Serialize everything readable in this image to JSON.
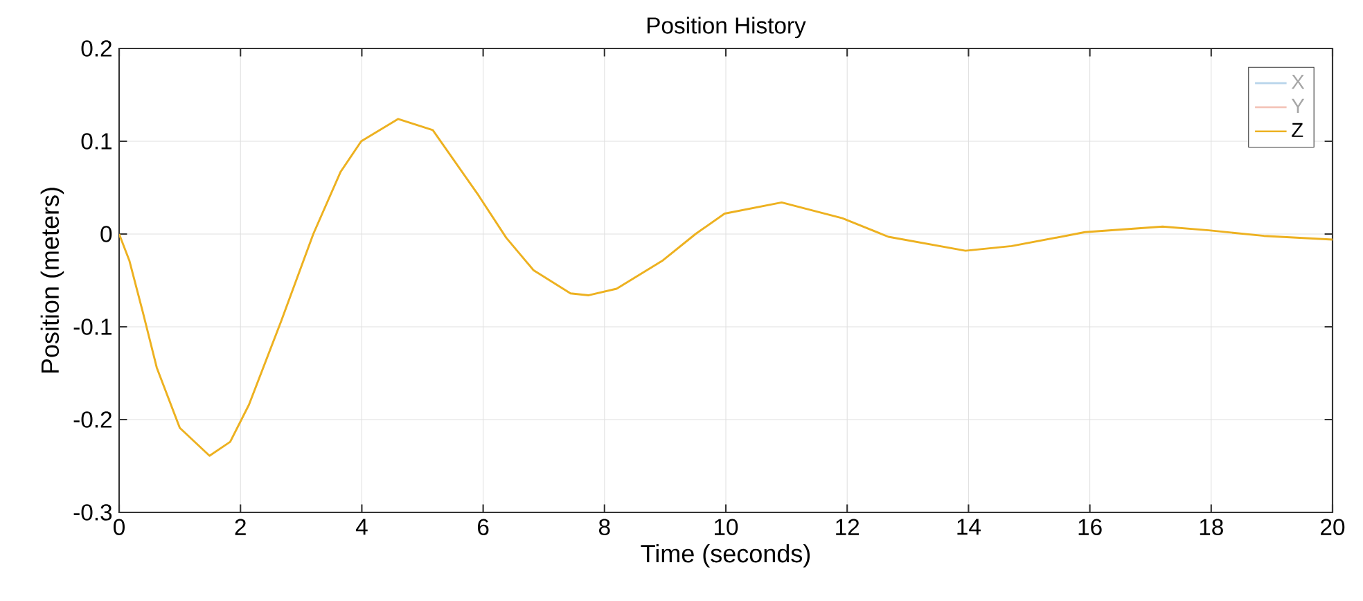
{
  "chart_data": {
    "type": "line",
    "title": "Position History",
    "xlabel": "Time (seconds)",
    "ylabel": "Position (meters)",
    "x": [
      0,
      0.17,
      0.39,
      0.62,
      1.0,
      1.49,
      1.83,
      2.14,
      2.67,
      3.2,
      3.65,
      3.99,
      4.6,
      5.17,
      5.92,
      6.38,
      6.83,
      7.44,
      7.74,
      8.2,
      8.95,
      9.5,
      9.98,
      10.92,
      11.92,
      12.68,
      13.95,
      14.71,
      15.92,
      17.2,
      17.96,
      18.87,
      20
    ],
    "series": [
      {
        "name": "X",
        "color": "#b7d4ea",
        "values": [
          null,
          null,
          null,
          null,
          null,
          null,
          null,
          null,
          null,
          null,
          null,
          null,
          null,
          null,
          null,
          null,
          null,
          null,
          null,
          null,
          null,
          null,
          null,
          null,
          null,
          null,
          null,
          null,
          null,
          null,
          null,
          null,
          null
        ]
      },
      {
        "name": "Y",
        "color": "#f4c4b8",
        "values": [
          null,
          null,
          null,
          null,
          null,
          null,
          null,
          null,
          null,
          null,
          null,
          null,
          null,
          null,
          null,
          null,
          null,
          null,
          null,
          null,
          null,
          null,
          null,
          null,
          null,
          null,
          null,
          null,
          null,
          null,
          null,
          null,
          null
        ]
      },
      {
        "name": "Z",
        "color": "#edb120",
        "values": [
          0,
          -0.029,
          -0.084,
          -0.144,
          -0.209,
          -0.239,
          -0.224,
          -0.184,
          -0.094,
          0,
          0.067,
          0.1,
          0.124,
          0.112,
          0.042,
          -0.004,
          -0.039,
          -0.064,
          -0.066,
          -0.059,
          -0.029,
          0,
          0.022,
          0.034,
          0.017,
          -0.003,
          -0.018,
          -0.013,
          0.002,
          0.008,
          0.004,
          -0.002,
          -0.006
        ]
      }
    ],
    "xlim": [
      0,
      20
    ],
    "xticks": [
      0,
      2,
      4,
      6,
      8,
      10,
      12,
      14,
      16,
      18,
      20
    ],
    "ylim": [
      -0.3,
      0.2
    ],
    "yticks": [
      -0.3,
      -0.2,
      -0.1,
      0,
      0.1,
      0.2
    ],
    "grid": true,
    "legend": "top right",
    "marker": "none",
    "line_style": "solid"
  }
}
